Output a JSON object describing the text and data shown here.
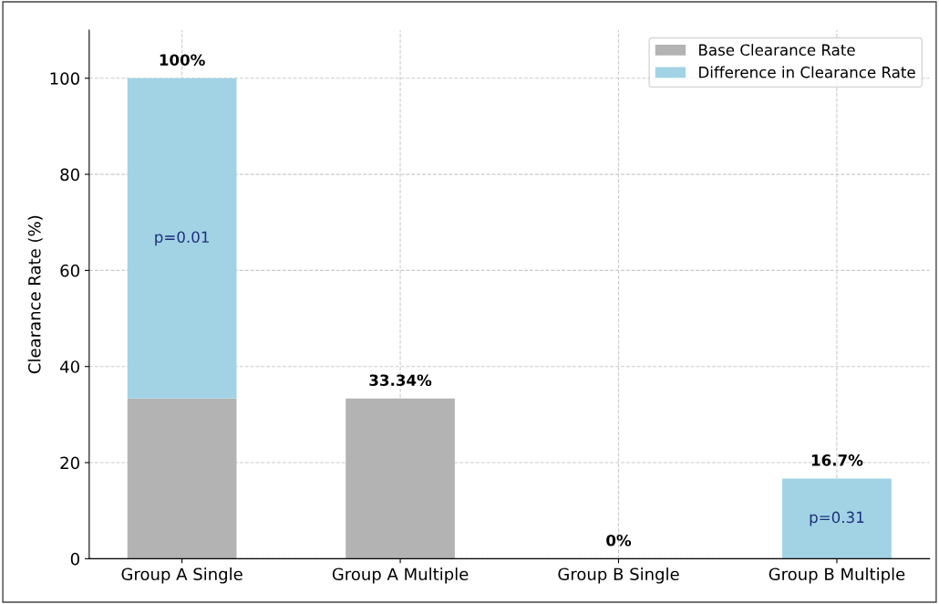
{
  "chart_data": {
    "type": "bar",
    "stacked": true,
    "ylabel": "Clearance Rate (%)",
    "categories": [
      "Group A Single",
      "Group A Multiple",
      "Group B Single",
      "Group B Multiple"
    ],
    "series": [
      {
        "name": "Base Clearance Rate",
        "color": "#b3b3b3",
        "values": [
          33.34,
          33.34,
          0,
          0
        ]
      },
      {
        "name": "Difference in Clearance Rate",
        "color": "#a1d3e4",
        "values": [
          66.66,
          0,
          0,
          16.7
        ]
      }
    ],
    "totals": [
      "100%",
      "33.34%",
      "0%",
      "16.7%"
    ],
    "annotations": [
      "p=0.01",
      "p=0.31"
    ],
    "ylim": [
      0,
      110
    ],
    "yticks": [
      0,
      20,
      40,
      60,
      80,
      100
    ],
    "grid": true,
    "legend": "top right"
  }
}
